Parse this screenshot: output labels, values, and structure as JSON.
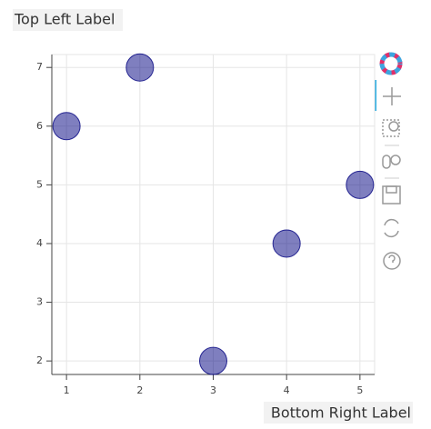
{
  "chart_data": {
    "type": "scatter",
    "annotations": [
      "Top Left Label",
      "Bottom Right Label"
    ],
    "x": [
      1,
      2,
      3,
      4,
      5
    ],
    "values": [
      6,
      7,
      2,
      4,
      5
    ],
    "color": "navy",
    "alpha": 0.5,
    "xlim": [
      0.8,
      5.2
    ],
    "ylim": [
      1.77,
      7.22
    ],
    "xticks": [
      1,
      2,
      3,
      4,
      5
    ],
    "yticks": [
      2,
      3,
      4,
      5,
      6,
      7
    ],
    "grid": true
  }
}
